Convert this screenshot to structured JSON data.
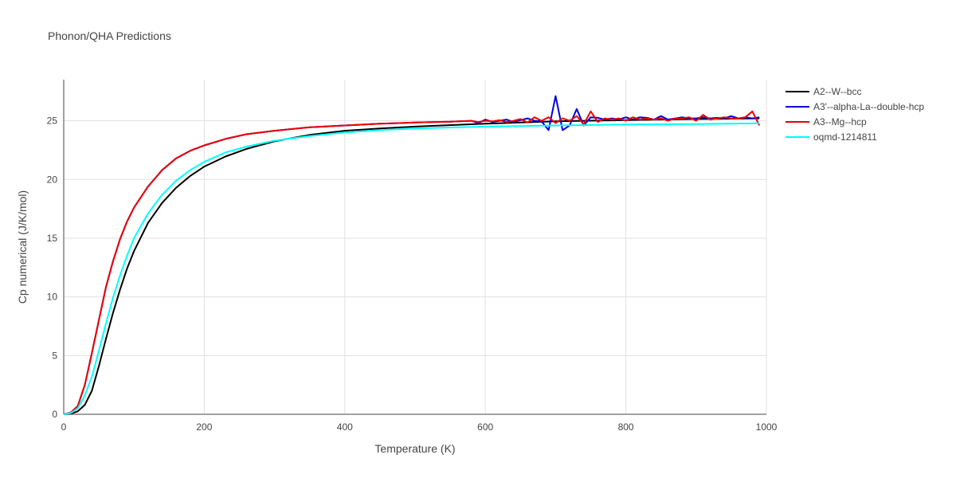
{
  "chart_data": {
    "type": "line",
    "title": "Phonon/QHA Predictions",
    "xlabel": "Temperature (K)",
    "ylabel": "Cp numerical (J/K/mol)",
    "xlim": [
      0,
      1000
    ],
    "ylim": [
      0,
      28.5
    ],
    "xticks": [
      0,
      200,
      400,
      600,
      800,
      1000
    ],
    "yticks": [
      0,
      5,
      10,
      15,
      20,
      25
    ],
    "grid": true,
    "legend_position": "top-right-outside",
    "series": [
      {
        "name": "A2--W--bcc",
        "color": "#000000",
        "x": [
          0,
          10,
          20,
          30,
          40,
          50,
          60,
          70,
          80,
          90,
          100,
          120,
          140,
          160,
          180,
          200,
          230,
          260,
          300,
          350,
          400,
          450,
          500,
          600,
          700,
          800,
          900,
          990
        ],
        "y": [
          0,
          0.05,
          0.25,
          0.8,
          2.0,
          4.1,
          6.4,
          8.6,
          10.6,
          12.4,
          13.9,
          16.3,
          18.0,
          19.3,
          20.3,
          21.1,
          21.95,
          22.6,
          23.25,
          23.8,
          24.15,
          24.35,
          24.5,
          24.75,
          24.95,
          25.05,
          25.15,
          25.2
        ]
      },
      {
        "name": "A3'--alpha-La--double-hcp",
        "color": "#0000dd",
        "x": [
          0,
          10,
          20,
          30,
          40,
          50,
          60,
          70,
          80,
          90,
          100,
          120,
          140,
          160,
          180,
          200,
          230,
          260,
          300,
          350,
          400,
          450,
          500,
          550,
          580,
          590,
          600,
          610,
          620,
          630,
          640,
          650,
          660,
          670,
          680,
          690,
          700,
          710,
          720,
          730,
          740,
          750,
          760,
          770,
          780,
          790,
          800,
          810,
          820,
          830,
          840,
          850,
          860,
          870,
          880,
          890,
          900,
          910,
          920,
          930,
          940,
          950,
          960,
          970,
          980,
          990
        ],
        "y": [
          0,
          0.15,
          0.7,
          2.5,
          5.2,
          8.0,
          10.8,
          13.0,
          14.9,
          16.4,
          17.6,
          19.4,
          20.8,
          21.8,
          22.45,
          22.9,
          23.45,
          23.85,
          24.15,
          24.45,
          24.6,
          24.75,
          24.85,
          24.92,
          25.0,
          24.8,
          25.1,
          24.9,
          25.0,
          25.1,
          24.9,
          25.05,
          25.2,
          25.0,
          24.95,
          24.2,
          27.1,
          24.2,
          24.6,
          26.0,
          24.6,
          25.3,
          25.25,
          25.1,
          25.2,
          25.1,
          25.3,
          25.1,
          25.3,
          25.25,
          25.1,
          25.4,
          25.1,
          25.2,
          25.3,
          25.2,
          25.2,
          25.3,
          25.2,
          25.25,
          25.2,
          25.4,
          25.2,
          25.3,
          25.2,
          25.3
        ]
      },
      {
        "name": "A3--Mg--hcp",
        "color": "#ee0000",
        "x": [
          0,
          10,
          20,
          30,
          40,
          50,
          60,
          70,
          80,
          90,
          100,
          120,
          140,
          160,
          180,
          200,
          230,
          260,
          300,
          350,
          400,
          450,
          500,
          550,
          580,
          590,
          600,
          610,
          620,
          630,
          640,
          650,
          660,
          670,
          680,
          690,
          700,
          710,
          720,
          730,
          740,
          750,
          760,
          770,
          780,
          790,
          800,
          810,
          820,
          830,
          840,
          850,
          860,
          870,
          880,
          890,
          900,
          910,
          920,
          930,
          940,
          950,
          960,
          970,
          980,
          990
        ],
        "y": [
          0,
          0.15,
          0.7,
          2.5,
          5.2,
          8.0,
          10.8,
          13.0,
          14.9,
          16.4,
          17.6,
          19.4,
          20.8,
          21.8,
          22.45,
          22.9,
          23.45,
          23.85,
          24.15,
          24.45,
          24.6,
          24.75,
          24.85,
          24.92,
          25.0,
          24.9,
          25.0,
          24.95,
          25.05,
          24.9,
          25.0,
          25.15,
          24.85,
          25.3,
          25.0,
          25.3,
          24.8,
          25.2,
          25.0,
          25.4,
          24.7,
          25.8,
          24.9,
          25.2,
          25.1,
          25.2,
          25.0,
          25.3,
          25.1,
          25.2,
          25.1,
          25.2,
          25.0,
          25.2,
          25.2,
          25.3,
          25.0,
          25.5,
          25.1,
          25.2,
          25.3,
          25.2,
          25.2,
          25.3,
          25.8,
          24.6
        ]
      },
      {
        "name": "oqmd-1214811",
        "color": "#00ffff",
        "x": [
          0,
          10,
          20,
          30,
          40,
          50,
          60,
          70,
          80,
          90,
          100,
          120,
          140,
          160,
          180,
          200,
          230,
          260,
          300,
          350,
          400,
          450,
          500,
          600,
          700,
          800,
          900,
          990
        ],
        "y": [
          0,
          0.1,
          0.5,
          1.6,
          3.2,
          5.4,
          7.7,
          9.9,
          11.8,
          13.5,
          15.0,
          17.1,
          18.7,
          19.9,
          20.8,
          21.5,
          22.3,
          22.8,
          23.3,
          23.7,
          24.0,
          24.2,
          24.35,
          24.5,
          24.6,
          24.68,
          24.72,
          24.78
        ]
      }
    ]
  }
}
